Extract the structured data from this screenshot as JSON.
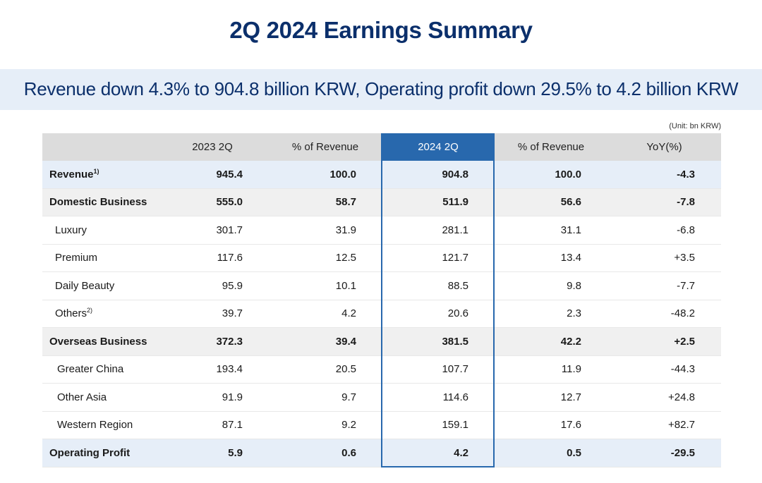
{
  "title": "2Q 2024 Earnings Summary",
  "subtitle": "Revenue down 4.3% to 904.8 billion KRW, Operating profit down 29.5% to 4.2 billion KRW",
  "unit": "(Unit: bn KRW)",
  "table": {
    "headers": [
      "",
      "2023 2Q",
      "% of Revenue",
      "2024 2Q",
      "% of Revenue",
      "YoY(%)"
    ],
    "rows": [
      {
        "label": "Revenue",
        "sup": "1)",
        "values": [
          "945.4",
          "100.0",
          "904.8",
          "100.0",
          "-4.3"
        ]
      },
      {
        "label": "Domestic Business",
        "sup": "",
        "values": [
          "555.0",
          "58.7",
          "511.9",
          "56.6",
          "-7.8"
        ]
      },
      {
        "label": "Luxury",
        "sup": "",
        "values": [
          "301.7",
          "31.9",
          "281.1",
          "31.1",
          "-6.8"
        ]
      },
      {
        "label": "Premium",
        "sup": "",
        "values": [
          "117.6",
          "12.5",
          "121.7",
          "13.4",
          "+3.5"
        ]
      },
      {
        "label": "Daily Beauty",
        "sup": "",
        "values": [
          "95.9",
          "10.1",
          "88.5",
          "9.8",
          "-7.7"
        ]
      },
      {
        "label": "Others",
        "sup": "2)",
        "values": [
          "39.7",
          "4.2",
          "20.6",
          "2.3",
          "-48.2"
        ]
      },
      {
        "label": "Overseas Business",
        "sup": "",
        "values": [
          "372.3",
          "39.4",
          "381.5",
          "42.2",
          "+2.5"
        ]
      },
      {
        "label": "Greater China",
        "sup": "",
        "values": [
          "193.4",
          "20.5",
          "107.7",
          "11.9",
          "-44.3"
        ]
      },
      {
        "label": "Other Asia",
        "sup": "",
        "values": [
          "91.9",
          "9.7",
          "114.6",
          "12.7",
          "+24.8"
        ]
      },
      {
        "label": "Western Region",
        "sup": "",
        "values": [
          "87.1",
          "9.2",
          "159.1",
          "17.6",
          "+82.7"
        ]
      },
      {
        "label": "Operating Profit",
        "sup": "",
        "values": [
          "5.9",
          "0.6",
          "4.2",
          "0.5",
          "-29.5"
        ]
      }
    ]
  }
}
